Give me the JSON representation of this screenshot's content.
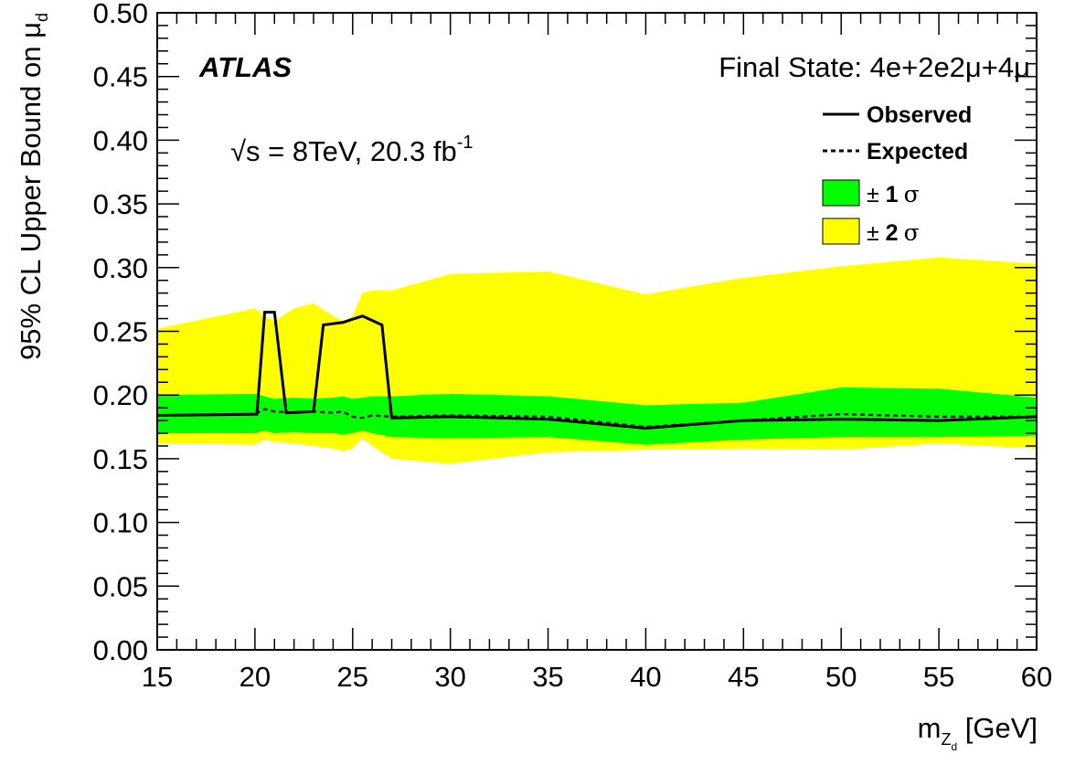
{
  "chart_data": {
    "type": "line",
    "title": "",
    "xlabel": "m",
    "xlabel_sub": "Z",
    "xlabel_subsub": "d",
    "xlabel_unit": " [GeV]",
    "ylabel": "95% CL Upper Bound on μ",
    "ylabel_sub": "d",
    "xlim": [
      15,
      60
    ],
    "ylim": [
      0,
      0.5
    ],
    "x_ticks": [
      "15",
      "20",
      "25",
      "30",
      "35",
      "40",
      "45",
      "50",
      "55",
      "60"
    ],
    "y_ticks": [
      "0.00",
      "0.05",
      "0.10",
      "0.15",
      "0.20",
      "0.25",
      "0.30",
      "0.35",
      "0.40",
      "0.45",
      "0.50"
    ],
    "grid": false,
    "legend_position": "top-right",
    "experiment": "ATLAS",
    "energy_label": "√s = 8TeV, 20.3 fb",
    "energy_sup": "-1",
    "final_state": "Final State: 4e+2e2μ+4μ",
    "legend": {
      "observed": "Observed",
      "expected": "Expected",
      "one_sigma_prefix": "± ",
      "one_sigma_num": "1",
      "two_sigma_prefix": "± ",
      "two_sigma_num": "2",
      "sigma_symbol": "σ"
    },
    "colors": {
      "one_sigma": "#00ff00",
      "two_sigma": "#ffff00",
      "line": "#000000"
    },
    "band_x": [
      15,
      20,
      20.5,
      21,
      22,
      23,
      24,
      24.5,
      25,
      25.5,
      26,
      27,
      30,
      35,
      40,
      45,
      50,
      55,
      60
    ],
    "two_sigma_upper": [
      0.252,
      0.268,
      0.262,
      0.258,
      0.268,
      0.272,
      0.262,
      0.258,
      0.262,
      0.28,
      0.282,
      0.282,
      0.295,
      0.297,
      0.279,
      0.292,
      0.301,
      0.308,
      0.303
    ],
    "two_sigma_lower": [
      0.162,
      0.161,
      0.165,
      0.163,
      0.162,
      0.16,
      0.158,
      0.156,
      0.158,
      0.166,
      0.16,
      0.15,
      0.146,
      0.155,
      0.157,
      0.158,
      0.157,
      0.162,
      0.158
    ],
    "one_sigma_upper": [
      0.2,
      0.201,
      0.199,
      0.197,
      0.198,
      0.197,
      0.198,
      0.199,
      0.197,
      0.198,
      0.199,
      0.199,
      0.201,
      0.199,
      0.192,
      0.194,
      0.206,
      0.205,
      0.198
    ],
    "one_sigma_lower": [
      0.17,
      0.17,
      0.172,
      0.17,
      0.171,
      0.17,
      0.17,
      0.169,
      0.17,
      0.172,
      0.17,
      0.167,
      0.166,
      0.167,
      0.161,
      0.165,
      0.167,
      0.167,
      0.168
    ],
    "series": [
      {
        "name": "Observed",
        "style": "solid",
        "x": [
          15,
          20.1,
          20.5,
          21.0,
          21.6,
          23.0,
          23.5,
          24.0,
          24.5,
          25.5,
          26.5,
          27.0,
          30,
          35,
          40,
          45,
          50,
          55,
          60
        ],
        "y": [
          0.184,
          0.185,
          0.265,
          0.265,
          0.186,
          0.187,
          0.255,
          0.256,
          0.257,
          0.262,
          0.255,
          0.182,
          0.183,
          0.181,
          0.174,
          0.18,
          0.181,
          0.18,
          0.183
        ]
      },
      {
        "name": "Expected",
        "style": "dashed",
        "x": [
          15,
          20,
          20.5,
          21,
          22,
          23,
          24,
          24.5,
          25,
          25.5,
          26,
          27,
          30,
          35,
          40,
          45,
          50,
          55,
          60
        ],
        "y": [
          0.184,
          0.185,
          0.189,
          0.187,
          0.186,
          0.187,
          0.186,
          0.187,
          0.183,
          0.182,
          0.184,
          0.183,
          0.184,
          0.183,
          0.175,
          0.18,
          0.185,
          0.183,
          0.183
        ]
      }
    ]
  }
}
